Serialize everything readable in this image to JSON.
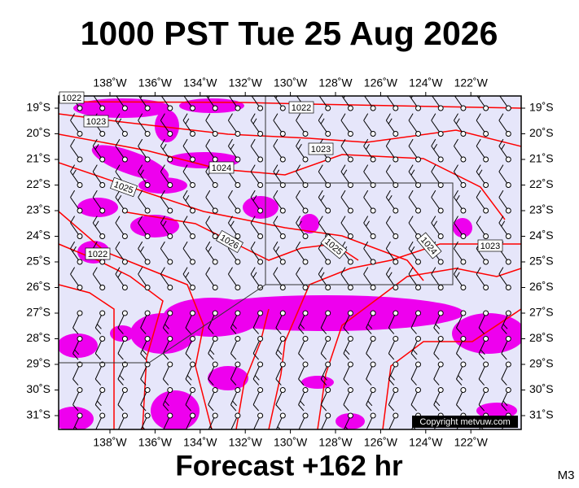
{
  "header": {
    "title": "1000 PST Tue 25 Aug 2026"
  },
  "map": {
    "lon_labels": [
      "138˚W",
      "136˚W",
      "134˚W",
      "132˚W",
      "130˚W",
      "128˚W",
      "126˚W",
      "124˚W",
      "122˚W"
    ],
    "lat_labels": [
      "19˚S",
      "20˚S",
      "21˚S",
      "22˚S",
      "23˚S",
      "24˚S",
      "25˚S",
      "26˚S",
      "27˚S",
      "28˚S",
      "29˚S",
      "30˚S",
      "31˚S"
    ],
    "isobar_labels": [
      "1022",
      "1023",
      "1022",
      "1023",
      "1024",
      "1025",
      "1026",
      "1025",
      "1024",
      "1023",
      "1022"
    ],
    "copyright": "Copyright metvuw.com"
  },
  "footer": {
    "forecast": "Forecast +162 hr",
    "model": "M3"
  }
}
